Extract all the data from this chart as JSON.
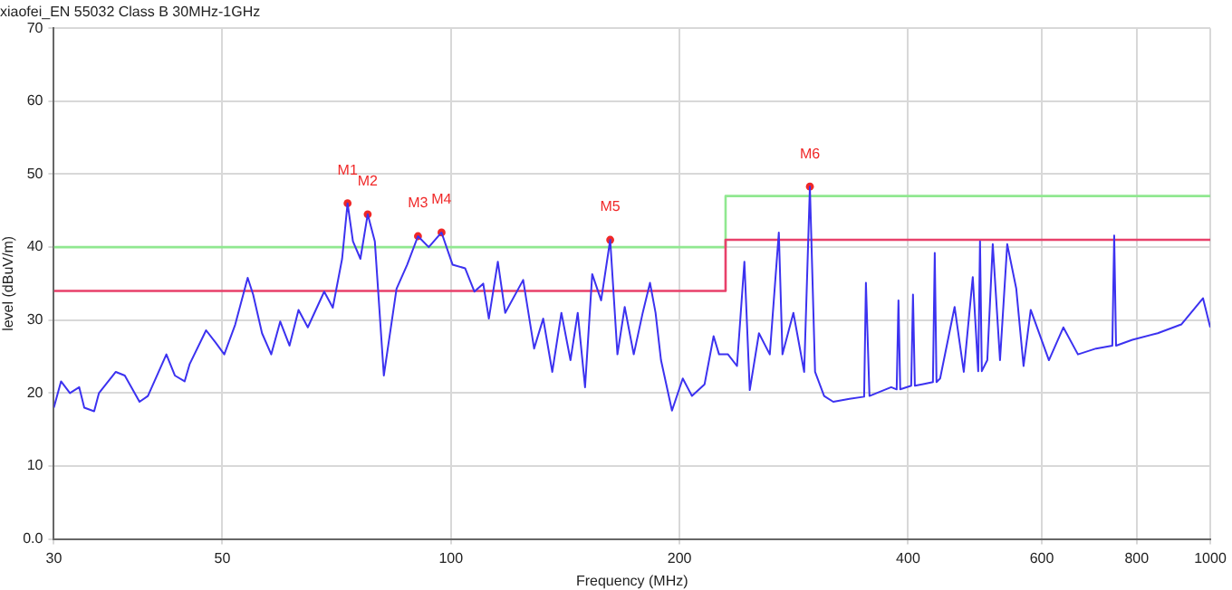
{
  "chart_data": {
    "type": "line",
    "title": "xiaofei_EN 55032 Class B 30MHz-1GHz",
    "xlabel": "Frequency (MHz)",
    "ylabel": "level (dBuV/m)",
    "log": "x",
    "grid": true,
    "legend": false,
    "xlim": [
      30,
      1000
    ],
    "xticks": [
      30,
      50,
      100,
      200,
      400,
      600,
      800,
      1000
    ],
    "ylim": [
      0,
      70
    ],
    "yticks": [
      {
        "value": 0,
        "label": "0.0"
      },
      10,
      20,
      30,
      40,
      50,
      60,
      70
    ],
    "series": [
      {
        "type": "line",
        "marker": "none",
        "color": "#3c32f0",
        "x": [
          30,
          30.66,
          31.5,
          32.4,
          32.9,
          33.9,
          34.4,
          36.2,
          37.2,
          38.9,
          39.9,
          42.2,
          43.3,
          44.6,
          45.3,
          47.6,
          49,
          50.3,
          52,
          54,
          54.9,
          56.4,
          58,
          59.6,
          61.3,
          63,
          64.8,
          68.1,
          69.9,
          71.9,
          73.1,
          74.3,
          76,
          77.7,
          79.4,
          81.6,
          84.8,
          87.6,
          90.5,
          93.5,
          97.2,
          100.5,
          104.4,
          107.4,
          110.3,
          112.2,
          115.3,
          117.9,
          124.5,
          128.7,
          132.3,
          136,
          139.8,
          143.7,
          146.9,
          150.2,
          153.5,
          157.7,
          162.1,
          165.7,
          169.4,
          174.1,
          178.9,
          182.9,
          186,
          189.1,
          195.5,
          202,
          207.7,
          215.8,
          221.8,
          225.5,
          231.7,
          238.1,
          243.5,
          247.5,
          254.5,
          263,
          270.3,
          273.3,
          282.5,
          291.9,
          297,
          301.7,
          310.1,
          318.8,
          334.9,
          350.1,
          352,
          355.8,
          380,
          386.4,
          388.5,
          390.6,
          403.8,
          406,
          408.3,
          417.3,
          431.3,
          433.7,
          436,
          440.8,
          460.6,
          473.6,
          486.7,
          494.8,
          497.5,
          500.2,
          508.6,
          517.1,
          528.6,
          540.3,
          555.3,
          567.7,
          580.2,
          613.1,
          640.5,
          669.5,
          707.3,
          743.1,
          747.3,
          751.5,
          789.6,
          852.7,
          915.9,
          978.2,
          1000
        ],
        "values": [
          18,
          21.6,
          20,
          20.8,
          18,
          17.5,
          20,
          22.9,
          22.4,
          18.8,
          19.6,
          25.3,
          22.4,
          21.6,
          24,
          28.6,
          26.9,
          25.3,
          29.4,
          35.8,
          33.5,
          28.2,
          25.3,
          29.8,
          26.5,
          31.4,
          29,
          33.9,
          31.7,
          38.4,
          46,
          40.8,
          38.4,
          44.5,
          40.8,
          22.4,
          34.3,
          37.6,
          41.5,
          40,
          42,
          37.6,
          37.1,
          33.9,
          35,
          30.2,
          38,
          31,
          35.5,
          26.1,
          30.2,
          22.9,
          31,
          24.5,
          31,
          20.8,
          36.3,
          32.7,
          41,
          25.3,
          31.8,
          25.3,
          31,
          35.1,
          31,
          24.5,
          17.6,
          22,
          19.6,
          21.2,
          27.8,
          25.3,
          25.3,
          23.7,
          38,
          20.4,
          28.2,
          25.3,
          42,
          25.3,
          31,
          22.9,
          48.3,
          22.9,
          19.6,
          18.8,
          19.2,
          19.5,
          35.1,
          19.6,
          20.8,
          20.5,
          32.7,
          20.5,
          21,
          33.5,
          21,
          21.2,
          21.5,
          39.2,
          21.5,
          22,
          31.8,
          22.9,
          35.9,
          23,
          40.8,
          23,
          24.5,
          40.4,
          24.5,
          40.4,
          34.3,
          23.7,
          31.4,
          24.5,
          29,
          25.3,
          26.1,
          26.5,
          41.6,
          26.5,
          27.3,
          28.2,
          29.4,
          33,
          29
        ]
      },
      {
        "type": "step",
        "color": "#e8406a",
        "x": [
          30,
          230,
          1000
        ],
        "values": [
          34,
          41,
          41
        ]
      },
      {
        "type": "step",
        "color": "#90e890",
        "x": [
          30,
          230,
          1000
        ],
        "values": [
          40,
          47,
          47
        ]
      },
      {
        "type": "scatter",
        "marker": "circle",
        "color": "#f02828",
        "x": [
          73.1,
          77.7,
          90.5,
          97.2,
          162.1,
          297
        ],
        "values": [
          46,
          44.5,
          41.5,
          42,
          41,
          48.3
        ]
      }
    ],
    "annotations": [
      {
        "text": "M1",
        "x": 73.1,
        "y": 46
      },
      {
        "text": "M2",
        "x": 77.7,
        "y": 44.5
      },
      {
        "text": "M3",
        "x": 90.5,
        "y": 41.5
      },
      {
        "text": "M4",
        "x": 97.2,
        "y": 42
      },
      {
        "text": "M5",
        "x": 162.1,
        "y": 41
      },
      {
        "text": "M6",
        "x": 297,
        "y": 48.3
      }
    ]
  }
}
